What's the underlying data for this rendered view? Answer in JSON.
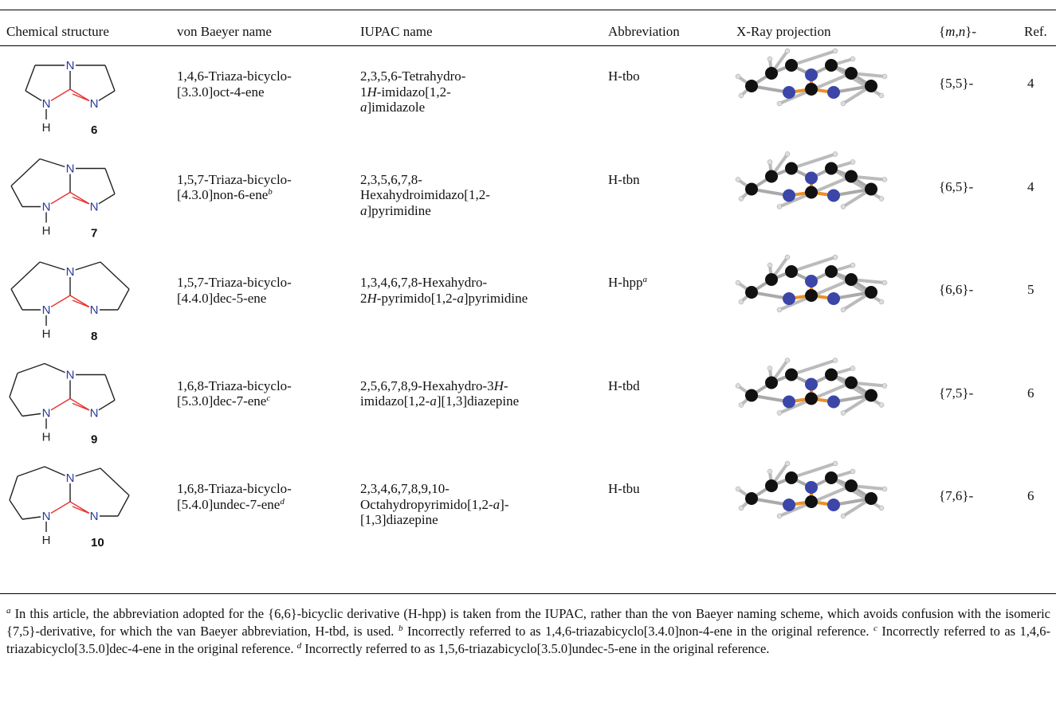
{
  "table": {
    "headers": [
      [
        "Chemical structure"
      ],
      [
        "von Baeyer name"
      ],
      [
        "IUPAC name"
      ],
      [
        "Abbreviation"
      ],
      [
        "X-Ray projection"
      ],
      [
        "{",
        {
          "text": "m,n",
          "style": "italic"
        },
        "}-"
      ],
      [
        "Ref."
      ]
    ],
    "rows": [
      {
        "structure": {
          "atoms": [
            "N",
            "N",
            "N",
            "H"
          ],
          "number": "6"
        },
        "von_baeyer": [
          [
            "1,4,6-Triaza-bicyclo-"
          ],
          [
            "[3.3.0]oct-4-ene"
          ]
        ],
        "iupac": [
          [
            "2,3,5,6-Tetrahydro-"
          ],
          [
            "1",
            {
              "text": "H",
              "style": "italic"
            },
            "-imidazo[1,2-"
          ],
          [
            {
              "text": "a",
              "style": "italic"
            },
            "]imidazole"
          ]
        ],
        "abbreviation": [
          "H-tbo"
        ],
        "mn": "{5,5}-",
        "ref": "4"
      },
      {
        "structure": {
          "atoms": [
            "N",
            "N",
            "N",
            "H"
          ],
          "number": "7"
        },
        "von_baeyer": [
          [
            "1,5,7-Triaza-bicyclo-"
          ],
          [
            "[4.3.0]non-6-ene",
            {
              "text": "b",
              "style": "sup"
            }
          ]
        ],
        "iupac": [
          [
            "2,3,5,6,7,8-"
          ],
          [
            "Hexahydroimidazo[1,2-"
          ],
          [
            {
              "text": "a",
              "style": "italic"
            },
            "]pyrimidine"
          ]
        ],
        "abbreviation": [
          "H-tbn"
        ],
        "mn": "{6,5}-",
        "ref": "4"
      },
      {
        "structure": {
          "atoms": [
            "N",
            "N",
            "N",
            "H"
          ],
          "number": "8"
        },
        "von_baeyer": [
          [
            "1,5,7-Triaza-bicyclo-"
          ],
          [
            "[4.4.0]dec-5-ene"
          ]
        ],
        "iupac": [
          [
            "1,3,4,6,7,8-Hexahydro-"
          ],
          [
            "2",
            {
              "text": "H",
              "style": "italic"
            },
            "-pyrimido[1,2-",
            {
              "text": "a",
              "style": "italic"
            },
            "]pyrimidine"
          ]
        ],
        "abbreviation": [
          "H-hpp",
          {
            "text": "a",
            "style": "sup"
          }
        ],
        "mn": "{6,6}-",
        "ref": "5"
      },
      {
        "structure": {
          "atoms": [
            "N",
            "N",
            "N",
            "H"
          ],
          "number": "9"
        },
        "von_baeyer": [
          [
            "1,6,8-Triaza-bicyclo-"
          ],
          [
            "[5.3.0]dec-7-ene",
            {
              "text": "c",
              "style": "sup"
            }
          ]
        ],
        "iupac": [
          [
            "2,5,6,7,8,9-Hexahydro-3",
            {
              "text": "H",
              "style": "italic"
            },
            "-"
          ],
          [
            "imidazo[1,2-",
            {
              "text": "a",
              "style": "italic"
            },
            "][1,3]diazepine"
          ]
        ],
        "abbreviation": [
          "H-tbd"
        ],
        "mn": "{7,5}-",
        "ref": "6"
      },
      {
        "structure": {
          "atoms": [
            "N",
            "N",
            "N",
            "H"
          ],
          "number": "10"
        },
        "von_baeyer": [
          [
            "1,6,8-Triaza-bicyclo-"
          ],
          [
            "[5.4.0]undec-7-ene",
            {
              "text": "d",
              "style": "sup"
            }
          ]
        ],
        "iupac": [
          [
            "2,3,4,6,7,8,9,10-"
          ],
          [
            "Octahydropyrimido[1,2-",
            {
              "text": "a",
              "style": "italic"
            },
            "]-"
          ],
          [
            "[1,3]diazepine"
          ]
        ],
        "abbreviation": [
          "H-tbu"
        ],
        "mn": "{7,6}-",
        "ref": "6"
      }
    ]
  },
  "footnotes": [
    {
      "mark": "a",
      "text": "In this article, the abbreviation adopted for the {6,6}-bicyclic derivative (H-hpp) is taken from the IUPAC, rather than the von Baeyer naming scheme, which avoids confusion with the isomeric {7,5}-derivative, for which the van Baeyer abbreviation, H-tbd, is used."
    },
    {
      "mark": "b",
      "text": "Incorrectly referred to as 1,4,6-triazabicyclo[3.4.0]non-4-ene in the original reference."
    },
    {
      "mark": "c",
      "text": "Incorrectly referred to as 1,4,6-triazabicyclo[3.5.0]dec-4-ene in the original reference."
    },
    {
      "mark": "d",
      "text": "Incorrectly referred to as 1,5,6-triazabicyclo[3.5.0]undec-5-ene in the original reference."
    }
  ]
}
